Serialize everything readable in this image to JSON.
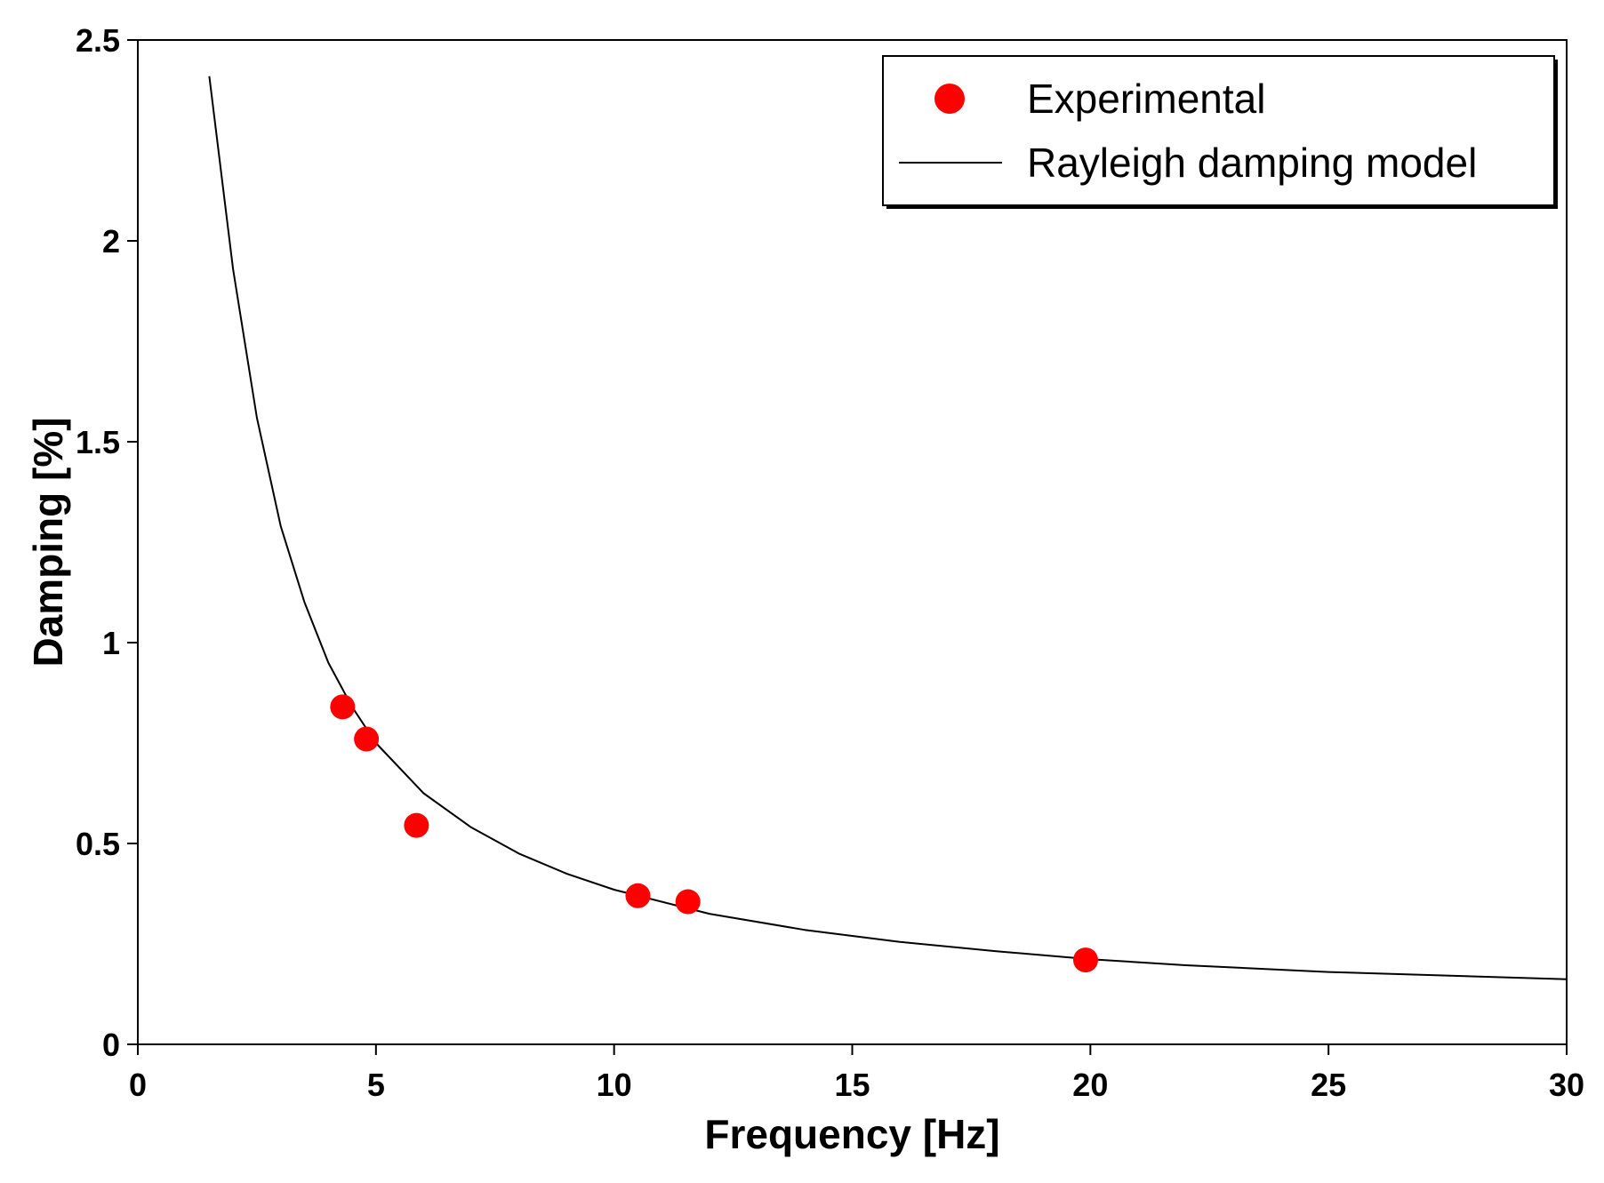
{
  "chart_data": {
    "type": "scatter",
    "title": "",
    "xlabel": "Frequency [Hz]",
    "ylabel": "Damping [%]",
    "xlim": [
      0,
      30
    ],
    "ylim": [
      0,
      2.5
    ],
    "xticks": [
      0,
      5,
      10,
      15,
      20,
      25,
      30
    ],
    "xtick_labels": [
      "0",
      "5",
      "10",
      "15",
      "20",
      "25",
      "30"
    ],
    "yticks": [
      0,
      0.5,
      1,
      1.5,
      2,
      2.5
    ],
    "ytick_labels": [
      "0",
      "0.5",
      "1",
      "1.5",
      "2",
      "2.5"
    ],
    "grid": false,
    "legend_position": "top-right",
    "series": [
      {
        "name": "Experimental",
        "kind": "scatter",
        "color": "#ff0000",
        "points": [
          {
            "x": 4.3,
            "y": 0.84
          },
          {
            "x": 4.8,
            "y": 0.76
          },
          {
            "x": 5.85,
            "y": 0.545
          },
          {
            "x": 10.5,
            "y": 0.37
          },
          {
            "x": 11.55,
            "y": 0.355
          },
          {
            "x": 19.9,
            "y": 0.21
          }
        ]
      },
      {
        "name": "Rayleigh damping model",
        "kind": "line",
        "color": "#000000",
        "points": [
          {
            "x": 1.5,
            "y": 2.41
          },
          {
            "x": 2,
            "y": 1.93
          },
          {
            "x": 2.5,
            "y": 1.56
          },
          {
            "x": 3,
            "y": 1.29
          },
          {
            "x": 3.5,
            "y": 1.1
          },
          {
            "x": 4,
            "y": 0.95
          },
          {
            "x": 4.5,
            "y": 0.84
          },
          {
            "x": 5,
            "y": 0.75
          },
          {
            "x": 6,
            "y": 0.625
          },
          {
            "x": 7,
            "y": 0.54
          },
          {
            "x": 8,
            "y": 0.475
          },
          {
            "x": 9,
            "y": 0.425
          },
          {
            "x": 10,
            "y": 0.385
          },
          {
            "x": 12,
            "y": 0.325
          },
          {
            "x": 14,
            "y": 0.285
          },
          {
            "x": 16,
            "y": 0.255
          },
          {
            "x": 18,
            "y": 0.232
          },
          {
            "x": 20,
            "y": 0.212
          },
          {
            "x": 22,
            "y": 0.197
          },
          {
            "x": 25,
            "y": 0.18
          },
          {
            "x": 30,
            "y": 0.162
          }
        ]
      }
    ]
  }
}
